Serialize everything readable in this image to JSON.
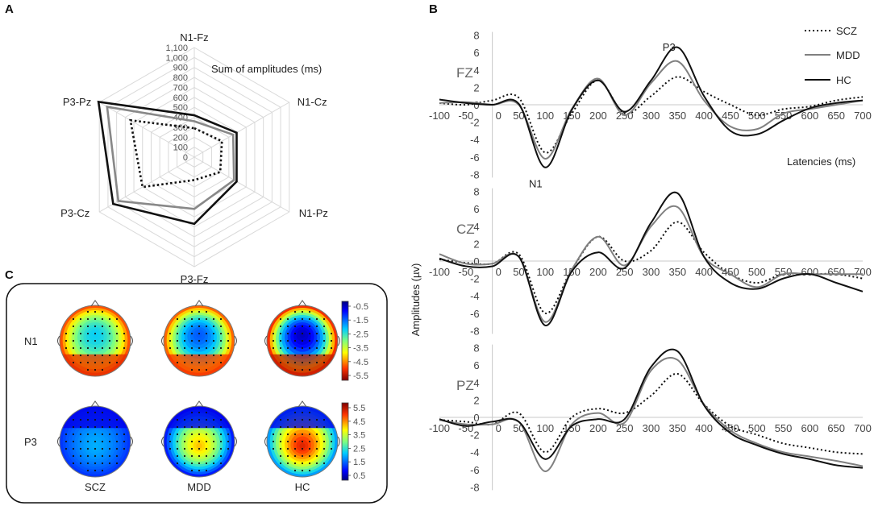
{
  "panels": {
    "a": "A",
    "b": "B",
    "c": "C"
  },
  "chart_data": [
    {
      "type": "radar",
      "title": "Sum of amplitudes (ms)",
      "axes": [
        "N1-Fz",
        "N1-Cz",
        "N1-Pz",
        "P3-Fz",
        "P3-Cz",
        "P3-Pz"
      ],
      "ticks": [
        0,
        100,
        200,
        300,
        400,
        500,
        600,
        700,
        800,
        900,
        1000,
        1100
      ],
      "tick_labels": [
        "0",
        "100",
        "200",
        "300",
        "400",
        "500",
        "600",
        "700",
        "800",
        "900",
        "1,000",
        "1,100"
      ],
      "range": [
        0,
        1100
      ],
      "series": [
        {
          "name": "SCZ",
          "style": "dotted",
          "color": "#111111",
          "values": [
            290,
            320,
            300,
            230,
            600,
            740
          ]
        },
        {
          "name": "MDD",
          "style": "solid",
          "color": "#888888",
          "values": [
            360,
            450,
            460,
            520,
            880,
            1010
          ]
        },
        {
          "name": "HC",
          "style": "solid",
          "color": "#111111",
          "values": [
            420,
            490,
            490,
            670,
            940,
            1110
          ]
        }
      ]
    },
    {
      "type": "line",
      "xlabel": "Latencies (ms)",
      "ylabel": "Amplitudes (µv)",
      "x": [
        -100,
        -50,
        0,
        50,
        100,
        150,
        200,
        250,
        300,
        350,
        400,
        450,
        500,
        550,
        600,
        650,
        700
      ],
      "x_tick_labels": [
        "-100",
        "-50",
        "0",
        "50",
        "100",
        "150",
        "200",
        "250",
        "300",
        "350",
        "400",
        "450",
        "500",
        "550",
        "600",
        "650",
        "700"
      ],
      "ylim": [
        -8,
        8
      ],
      "y_ticks": [
        -8,
        -6,
        -4,
        -2,
        0,
        2,
        4,
        6,
        8
      ],
      "legend": [
        "SCZ",
        "MDD",
        "HC"
      ],
      "subplots": [
        {
          "name": "FZ",
          "annotations": [
            {
              "text": "N1",
              "x": 100,
              "y": -8.2
            },
            {
              "text": "P3",
              "x": 340,
              "y": 7.5
            }
          ],
          "series": [
            {
              "name": "SCZ",
              "values": [
                0.2,
                0.0,
                0.5,
                0.8,
                -5.5,
                -1.0,
                2.8,
                -1.0,
                1.0,
                3.2,
                1.5,
                0.0,
                -1.2,
                -0.5,
                -0.2,
                0.5,
                0.9
              ]
            },
            {
              "name": "MDD",
              "values": [
                0.2,
                0.3,
                0.0,
                0.0,
                -6.2,
                -0.5,
                3.0,
                -1.2,
                2.5,
                5.0,
                0.5,
                -2.5,
                -2.8,
                -1.0,
                -0.5,
                0.0,
                0.5
              ]
            },
            {
              "name": "HC",
              "values": [
                0.6,
                0.2,
                0.0,
                0.1,
                -7.2,
                -0.6,
                2.8,
                -0.8,
                2.8,
                6.6,
                1.0,
                -3.0,
                -3.4,
                -1.8,
                -0.4,
                0.2,
                0.5
              ]
            }
          ]
        },
        {
          "name": "CZ",
          "annotations": [],
          "series": [
            {
              "name": "SCZ",
              "values": [
                0.2,
                -0.2,
                -0.3,
                0.8,
                -6.0,
                -1.0,
                2.8,
                0.0,
                1.2,
                4.5,
                1.0,
                -1.5,
                -2.5,
                -1.5,
                -1.5,
                -1.5,
                -2.0
              ]
            },
            {
              "name": "MDD",
              "values": [
                0.8,
                -0.3,
                -0.3,
                0.5,
                -7.0,
                -1.0,
                2.8,
                -0.5,
                4.0,
                6.2,
                0.5,
                -1.5,
                -3.0,
                -1.5,
                -1.5,
                -1.5,
                -1.5
              ]
            },
            {
              "name": "HC",
              "values": [
                0.3,
                -0.6,
                -0.6,
                0.5,
                -7.4,
                -1.2,
                1.0,
                -0.8,
                4.4,
                7.8,
                0.5,
                -2.5,
                -3.2,
                -2.0,
                -1.5,
                -2.5,
                -3.5
              ]
            }
          ]
        },
        {
          "name": "PZ",
          "annotations": [],
          "series": [
            {
              "name": "SCZ",
              "values": [
                -0.3,
                -0.5,
                -0.8,
                0.5,
                -4.0,
                0.0,
                1.0,
                0.5,
                2.5,
                5.0,
                1.5,
                -1.0,
                -2.0,
                -3.0,
                -3.5,
                -4.0,
                -4.2
              ]
            },
            {
              "name": "MDD",
              "values": [
                -0.3,
                -0.8,
                -0.8,
                -0.5,
                -6.2,
                -0.8,
                0.5,
                -0.6,
                5.4,
                6.6,
                1.5,
                -1.5,
                -3.0,
                -4.0,
                -4.5,
                -5.0,
                -5.6
              ]
            },
            {
              "name": "HC",
              "values": [
                -0.2,
                -1.0,
                -0.5,
                -0.5,
                -4.8,
                -1.0,
                -0.2,
                -0.2,
                5.8,
                7.6,
                1.4,
                -1.8,
                -3.2,
                -4.2,
                -4.8,
                -5.5,
                -5.8
              ]
            }
          ]
        }
      ]
    },
    {
      "type": "heatmap",
      "rows": [
        "N1",
        "P3"
      ],
      "columns": [
        "SCZ",
        "MDD",
        "HC"
      ],
      "colorbars": [
        {
          "row": "N1",
          "ticks": [
            "-0.5",
            "-1.5",
            "-2.5",
            "-3.5",
            "-4.5",
            "-5.5"
          ]
        },
        {
          "row": "P3",
          "ticks": [
            "5.5",
            "4.5",
            "3.5",
            "2.5",
            "1.5",
            "0.5"
          ]
        }
      ],
      "colormap": [
        "#00007f",
        "#0000ff",
        "#007fff",
        "#00ffff",
        "#7fff7f",
        "#ffff00",
        "#ff7f00",
        "#ff0000",
        "#7f0000"
      ]
    }
  ]
}
